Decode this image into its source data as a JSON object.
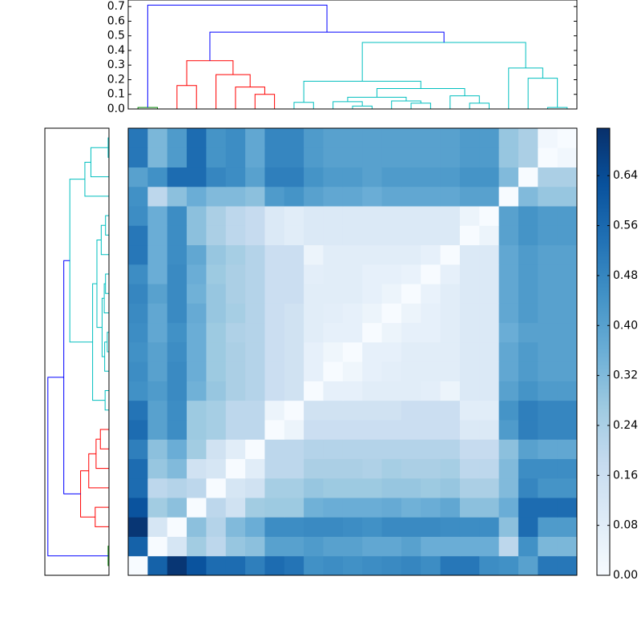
{
  "chart_data": {
    "type": "heatmap",
    "values": [
      [
        0,
        0.58,
        0.7,
        0.62,
        0.55,
        0.55,
        0.5,
        0.55,
        0.53,
        0.45,
        0.46,
        0.45,
        0.46,
        0.47,
        0.48,
        0.46,
        0.52,
        0.52,
        0.46,
        0.45,
        0.4,
        0.52,
        0.52
      ],
      [
        0.58,
        0,
        0.12,
        0.26,
        0.2,
        0.28,
        0.3,
        0.4,
        0.4,
        0.42,
        0.4,
        0.4,
        0.38,
        0.38,
        0.4,
        0.36,
        0.36,
        0.36,
        0.36,
        0.2,
        0.45,
        0.33,
        0.33
      ],
      [
        0.7,
        0.12,
        0,
        0.3,
        0.22,
        0.32,
        0.36,
        0.46,
        0.46,
        0.47,
        0.47,
        0.46,
        0.45,
        0.47,
        0.47,
        0.47,
        0.46,
        0.46,
        0.46,
        0.3,
        0.55,
        0.42,
        0.42
      ],
      [
        0.62,
        0.26,
        0.3,
        0,
        0.2,
        0.14,
        0.26,
        0.27,
        0.27,
        0.35,
        0.36,
        0.36,
        0.36,
        0.37,
        0.35,
        0.36,
        0.38,
        0.3,
        0.3,
        0.36,
        0.55,
        0.55,
        0.55
      ],
      [
        0.55,
        0.2,
        0.22,
        0.2,
        0,
        0.12,
        0.14,
        0.25,
        0.25,
        0.28,
        0.27,
        0.27,
        0.27,
        0.28,
        0.28,
        0.27,
        0.28,
        0.24,
        0.24,
        0.32,
        0.48,
        0.44,
        0.44
      ],
      [
        0.55,
        0.28,
        0.32,
        0.14,
        0.12,
        0,
        0.08,
        0.2,
        0.2,
        0.24,
        0.24,
        0.24,
        0.23,
        0.25,
        0.24,
        0.24,
        0.25,
        0.2,
        0.2,
        0.32,
        0.46,
        0.46,
        0.46
      ],
      [
        0.5,
        0.3,
        0.36,
        0.26,
        0.14,
        0.08,
        0,
        0.2,
        0.2,
        0.22,
        0.22,
        0.22,
        0.22,
        0.22,
        0.22,
        0.22,
        0.22,
        0.18,
        0.18,
        0.3,
        0.4,
        0.38,
        0.38
      ],
      [
        0.55,
        0.4,
        0.46,
        0.27,
        0.25,
        0.2,
        0.2,
        0,
        0.04,
        0.16,
        0.16,
        0.16,
        0.16,
        0.16,
        0.16,
        0.16,
        0.16,
        0.1,
        0.1,
        0.42,
        0.5,
        0.48,
        0.48
      ],
      [
        0.53,
        0.4,
        0.46,
        0.27,
        0.25,
        0.2,
        0.2,
        0.04,
        0,
        0.14,
        0.14,
        0.14,
        0.14,
        0.14,
        0.16,
        0.16,
        0.16,
        0.08,
        0.08,
        0.44,
        0.5,
        0.48,
        0.48
      ],
      [
        0.45,
        0.42,
        0.47,
        0.35,
        0.28,
        0.24,
        0.22,
        0.16,
        0.14,
        0,
        0.06,
        0.06,
        0.08,
        0.08,
        0.08,
        0.07,
        0.04,
        0.1,
        0.1,
        0.4,
        0.44,
        0.42,
        0.42
      ],
      [
        0.46,
        0.4,
        0.47,
        0.36,
        0.27,
        0.24,
        0.22,
        0.16,
        0.14,
        0.06,
        0,
        0.03,
        0.06,
        0.07,
        0.08,
        0.08,
        0.08,
        0.1,
        0.1,
        0.38,
        0.42,
        0.4,
        0.4
      ],
      [
        0.45,
        0.4,
        0.46,
        0.36,
        0.27,
        0.24,
        0.22,
        0.16,
        0.14,
        0.06,
        0.03,
        0,
        0.06,
        0.06,
        0.08,
        0.08,
        0.08,
        0.1,
        0.1,
        0.38,
        0.42,
        0.4,
        0.4
      ],
      [
        0.46,
        0.38,
        0.45,
        0.36,
        0.27,
        0.23,
        0.22,
        0.16,
        0.14,
        0.08,
        0.06,
        0.06,
        0,
        0.04,
        0.06,
        0.06,
        0.08,
        0.1,
        0.1,
        0.36,
        0.4,
        0.4,
        0.4
      ],
      [
        0.47,
        0.38,
        0.47,
        0.37,
        0.28,
        0.25,
        0.22,
        0.16,
        0.14,
        0.08,
        0.07,
        0.06,
        0.04,
        0,
        0.04,
        0.06,
        0.08,
        0.1,
        0.1,
        0.38,
        0.42,
        0.4,
        0.4
      ],
      [
        0.48,
        0.4,
        0.47,
        0.35,
        0.28,
        0.24,
        0.22,
        0.16,
        0.16,
        0.08,
        0.08,
        0.08,
        0.06,
        0.04,
        0,
        0.05,
        0.08,
        0.1,
        0.1,
        0.38,
        0.42,
        0.4,
        0.4
      ],
      [
        0.46,
        0.36,
        0.47,
        0.36,
        0.27,
        0.24,
        0.22,
        0.16,
        0.16,
        0.07,
        0.08,
        0.08,
        0.06,
        0.06,
        0.05,
        0,
        0.06,
        0.1,
        0.1,
        0.38,
        0.42,
        0.4,
        0.4
      ],
      [
        0.52,
        0.36,
        0.46,
        0.38,
        0.28,
        0.25,
        0.22,
        0.16,
        0.16,
        0.04,
        0.08,
        0.08,
        0.08,
        0.08,
        0.08,
        0.06,
        0,
        0.1,
        0.1,
        0.38,
        0.42,
        0.4,
        0.4
      ],
      [
        0.52,
        0.36,
        0.46,
        0.3,
        0.24,
        0.2,
        0.18,
        0.1,
        0.08,
        0.1,
        0.1,
        0.1,
        0.1,
        0.1,
        0.1,
        0.1,
        0.1,
        0,
        0.04,
        0.4,
        0.44,
        0.42,
        0.42
      ],
      [
        0.46,
        0.36,
        0.46,
        0.3,
        0.24,
        0.2,
        0.18,
        0.1,
        0.08,
        0.1,
        0.1,
        0.1,
        0.1,
        0.1,
        0.1,
        0.1,
        0.1,
        0.04,
        0,
        0.4,
        0.44,
        0.42,
        0.42
      ],
      [
        0.45,
        0.2,
        0.3,
        0.36,
        0.32,
        0.32,
        0.3,
        0.42,
        0.44,
        0.4,
        0.38,
        0.38,
        0.36,
        0.38,
        0.38,
        0.38,
        0.38,
        0.4,
        0.4,
        0,
        0.32,
        0.28,
        0.28
      ],
      [
        0.4,
        0.45,
        0.55,
        0.55,
        0.48,
        0.46,
        0.4,
        0.5,
        0.5,
        0.44,
        0.42,
        0.42,
        0.4,
        0.42,
        0.42,
        0.42,
        0.42,
        0.44,
        0.44,
        0.32,
        0,
        0.24,
        0.24
      ],
      [
        0.52,
        0.33,
        0.42,
        0.55,
        0.44,
        0.46,
        0.38,
        0.48,
        0.48,
        0.42,
        0.4,
        0.4,
        0.4,
        0.4,
        0.4,
        0.4,
        0.4,
        0.42,
        0.42,
        0.28,
        0.24,
        0,
        0.02
      ],
      [
        0.52,
        0.33,
        0.42,
        0.55,
        0.44,
        0.46,
        0.38,
        0.48,
        0.48,
        0.42,
        0.4,
        0.4,
        0.4,
        0.4,
        0.4,
        0.4,
        0.4,
        0.42,
        0.42,
        0.28,
        0.24,
        0.02,
        0
      ]
    ],
    "clim": [
      0,
      0.716
    ],
    "colormap": [
      "#f7fbff",
      "#deebf7",
      "#c6dbef",
      "#9ecae1",
      "#6baed6",
      "#4292c6",
      "#2171b5",
      "#08519c",
      "#08306b"
    ],
    "colorbar_ticks": [
      {
        "value": 0,
        "label": "0.00"
      },
      {
        "value": 0.08,
        "label": "0.08"
      },
      {
        "value": 0.16,
        "label": "0.16"
      },
      {
        "value": 0.24,
        "label": "0.24"
      },
      {
        "value": 0.32,
        "label": "0.32"
      },
      {
        "value": 0.4,
        "label": "0.40"
      },
      {
        "value": 0.48,
        "label": "0.48"
      },
      {
        "value": 0.56,
        "label": "0.56"
      },
      {
        "value": 0.64,
        "label": "0.64"
      }
    ],
    "dendrogram": {
      "ylim": [
        0,
        0.745
      ],
      "yticks": [
        {
          "value": 0,
          "label": "0.0"
        },
        {
          "value": 0.1,
          "label": "0.1"
        },
        {
          "value": 0.2,
          "label": "0.2"
        },
        {
          "value": 0.3,
          "label": "0.3"
        },
        {
          "value": 0.4,
          "label": "0.4"
        },
        {
          "value": 0.5,
          "label": "0.5"
        },
        {
          "value": 0.6,
          "label": "0.6"
        },
        {
          "value": 0.7,
          "label": "0.7"
        }
      ],
      "links": [
        {
          "a": 0,
          "b": 1,
          "height": 0.01,
          "color": "#008000"
        },
        {
          "a": 2,
          "b": 3,
          "height": 0.16,
          "color": "#ff0000"
        },
        {
          "a": 6,
          "b": 7,
          "height": 0.1,
          "color": "#ff0000"
        },
        {
          "a": 5,
          "b": 25,
          "height": 0.15,
          "color": "#ff0000"
        },
        {
          "a": 4,
          "b": 26,
          "height": 0.235,
          "color": "#ff0000"
        },
        {
          "a": 24,
          "b": 27,
          "height": 0.33,
          "color": "#ff0000"
        },
        {
          "a": 8,
          "b": 9,
          "height": 0.045,
          "color": "#00bfbf"
        },
        {
          "a": 11,
          "b": 12,
          "height": 0.02,
          "color": "#00bfbf"
        },
        {
          "a": 10,
          "b": 30,
          "height": 0.05,
          "color": "#00bfbf"
        },
        {
          "a": 14,
          "b": 15,
          "height": 0.04,
          "color": "#00bfbf"
        },
        {
          "a": 13,
          "b": 32,
          "height": 0.055,
          "color": "#00bfbf"
        },
        {
          "a": 31,
          "b": 33,
          "height": 0.08,
          "color": "#00bfbf"
        },
        {
          "a": 17,
          "b": 18,
          "height": 0.04,
          "color": "#00bfbf"
        },
        {
          "a": 16,
          "b": 35,
          "height": 0.09,
          "color": "#00bfbf"
        },
        {
          "a": 34,
          "b": 36,
          "height": 0.14,
          "color": "#00bfbf"
        },
        {
          "a": 29,
          "b": 37,
          "height": 0.19,
          "color": "#00bfbf"
        },
        {
          "a": 21,
          "b": 22,
          "height": 0.01,
          "color": "#00bfbf"
        },
        {
          "a": 20,
          "b": 39,
          "height": 0.21,
          "color": "#00bfbf"
        },
        {
          "a": 19,
          "b": 40,
          "height": 0.28,
          "color": "#00bfbf"
        },
        {
          "a": 38,
          "b": 41,
          "height": 0.455,
          "color": "#00bfbf"
        },
        {
          "a": 28,
          "b": 42,
          "height": 0.525,
          "color": "#0000ff"
        },
        {
          "a": 23,
          "b": 43,
          "height": 0.71,
          "color": "#0000ff"
        }
      ]
    }
  }
}
